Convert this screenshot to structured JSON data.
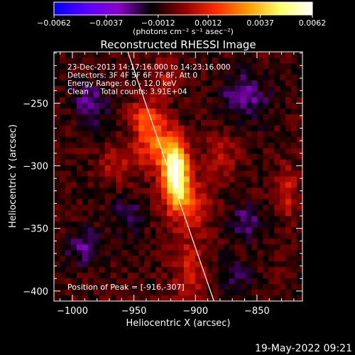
{
  "chart_data": {
    "type": "heatmap",
    "title": "Reconstructed RHESSI Image",
    "xlabel": "Heliocentric X (arcsec)",
    "ylabel": "Heliocentric Y (arcsec)",
    "xlim": [
      -1015,
      -813
    ],
    "ylim": [
      -408,
      -209
    ],
    "x_ticks": [
      -1000,
      -950,
      -900,
      -850
    ],
    "x_tick_labels": [
      "−1000",
      "−950",
      "−900",
      "−850"
    ],
    "y_ticks": [
      -250,
      -300,
      -350,
      -400
    ],
    "y_tick_labels": [
      "−250",
      "−300",
      "−350",
      "−400"
    ],
    "colorbar": {
      "min": -0.0062,
      "max": 0.0062,
      "ticks": [
        -0.0062,
        -0.0037,
        -0.0012,
        0.0012,
        0.0037,
        0.0062
      ],
      "tick_labels": [
        "−0.0062",
        "−0.0037",
        "−0.0012",
        "0.0012",
        "0.0037",
        "0.0062"
      ],
      "unit_label": "(photons cm⁻² s⁻¹ asec⁻²)",
      "colors": [
        "#0000ff",
        "#5a00ff",
        "#8a00c8",
        "#000000",
        "#8a0000",
        "#ff2a00",
        "#ff9a00",
        "#ffff66",
        "#ffffff"
      ]
    },
    "annotations": [
      "23-Dec-2013 14:17:16.000 to 14:23:16.000",
      "Detectors: 3F 4F 5F 6F 7F 8F, Att 0",
      "Energy Range: 6.0 - 12.0 keV",
      "Clean     Total counts: 3.91E+04"
    ],
    "peak_label": "Position of Peak = [-916,-307]",
    "peak": [
      -916,
      -307
    ],
    "peak_value": 0.0062,
    "limb_line": [
      [
        -955,
        -209
      ],
      [
        -885,
        -408
      ]
    ],
    "blobs": [
      {
        "x": -916,
        "y": -307,
        "sx": 7,
        "sy": 16,
        "amp": 0.0068
      },
      {
        "x": -930,
        "y": -285,
        "sx": 12,
        "sy": 14,
        "amp": 0.003
      },
      {
        "x": -940,
        "y": -262,
        "sx": 10,
        "sy": 10,
        "amp": 0.0024
      },
      {
        "x": -905,
        "y": -330,
        "sx": 12,
        "sy": 14,
        "amp": 0.0022
      },
      {
        "x": -905,
        "y": -385,
        "sx": 10,
        "sy": 22,
        "amp": 0.0016
      },
      {
        "x": -880,
        "y": -290,
        "sx": 10,
        "sy": 14,
        "amp": 0.0013
      },
      {
        "x": -965,
        "y": -300,
        "sx": 10,
        "sy": 10,
        "amp": 0.0014
      },
      {
        "x": -825,
        "y": -320,
        "sx": 6,
        "sy": 16,
        "amp": 0.0016
      },
      {
        "x": -925,
        "y": -228,
        "sx": 8,
        "sy": 10,
        "amp": 0.0012
      },
      {
        "x": -990,
        "y": -365,
        "sx": 10,
        "sy": 10,
        "amp": -0.0018
      },
      {
        "x": -860,
        "y": -245,
        "sx": 14,
        "sy": 14,
        "amp": -0.0018
      },
      {
        "x": -985,
        "y": -250,
        "sx": 10,
        "sy": 12,
        "amp": -0.0017
      },
      {
        "x": -860,
        "y": -345,
        "sx": 10,
        "sy": 10,
        "amp": -0.0015
      },
      {
        "x": -955,
        "y": -340,
        "sx": 8,
        "sy": 10,
        "amp": -0.0014
      },
      {
        "x": -870,
        "y": -390,
        "sx": 10,
        "sy": 10,
        "amp": -0.0012
      }
    ],
    "baseline": -0.0009,
    "noise_amplitude": 0.0007,
    "grid": false
  },
  "footer": {
    "timestamp": "19-May-2022 09:21"
  }
}
